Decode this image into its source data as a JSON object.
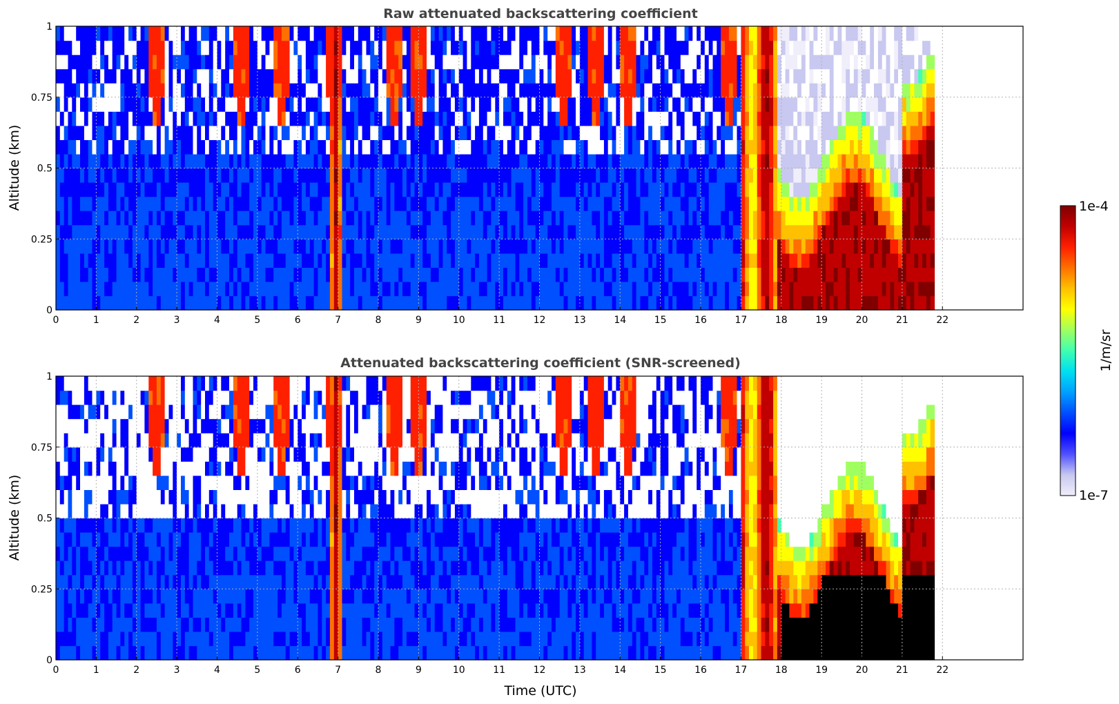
{
  "chart_data": [
    {
      "type": "heatmap",
      "title": "Raw attenuated backscattering coefficient",
      "xlabel": "",
      "ylabel": "Altitude (km)",
      "xlim": [
        0,
        24
      ],
      "ylim": [
        0,
        1
      ],
      "x_ticks": [
        "0",
        "1",
        "2",
        "3",
        "4",
        "5",
        "6",
        "7",
        "8",
        "9",
        "10",
        "11",
        "12",
        "13",
        "14",
        "15",
        "16",
        "17",
        "18",
        "19",
        "20",
        "21",
        "22"
      ],
      "y_ticks": [
        "0",
        "0.25",
        "0.5",
        "0.75",
        "1"
      ],
      "y_tick_values": [
        0,
        0.25,
        0.5,
        0.75,
        1
      ],
      "data_end_hour": 21.8,
      "grid": true,
      "colormap": "jet",
      "screened": false
    },
    {
      "type": "heatmap",
      "title": "Attenuated backscattering coefficient (SNR-screened)",
      "xlabel": "Time (UTC)",
      "ylabel": "Altitude (km)",
      "xlim": [
        0,
        24
      ],
      "ylim": [
        0,
        1
      ],
      "x_ticks": [
        "0",
        "1",
        "2",
        "3",
        "4",
        "5",
        "6",
        "7",
        "8",
        "9",
        "10",
        "11",
        "12",
        "13",
        "14",
        "15",
        "16",
        "17",
        "18",
        "19",
        "20",
        "21",
        "22"
      ],
      "y_ticks": [
        "0",
        "0.25",
        "0.5",
        "0.75",
        "1"
      ],
      "y_tick_values": [
        0,
        0.25,
        0.5,
        0.75,
        1
      ],
      "data_end_hour": 21.8,
      "grid": true,
      "colormap": "jet",
      "screened": true
    }
  ],
  "colorbar": {
    "label": "1/m/sr",
    "max_label": "1e-4",
    "min_label": "1e-7",
    "colors": [
      "#f0eefa",
      "#c8c8f0",
      "#5050ff",
      "#0000ff",
      "#0050ff",
      "#00a0ff",
      "#00e0f0",
      "#40ffb0",
      "#a0ff60",
      "#ffff00",
      "#ffc000",
      "#ff7000",
      "#ff2000",
      "#c00000",
      "#800000"
    ]
  }
}
